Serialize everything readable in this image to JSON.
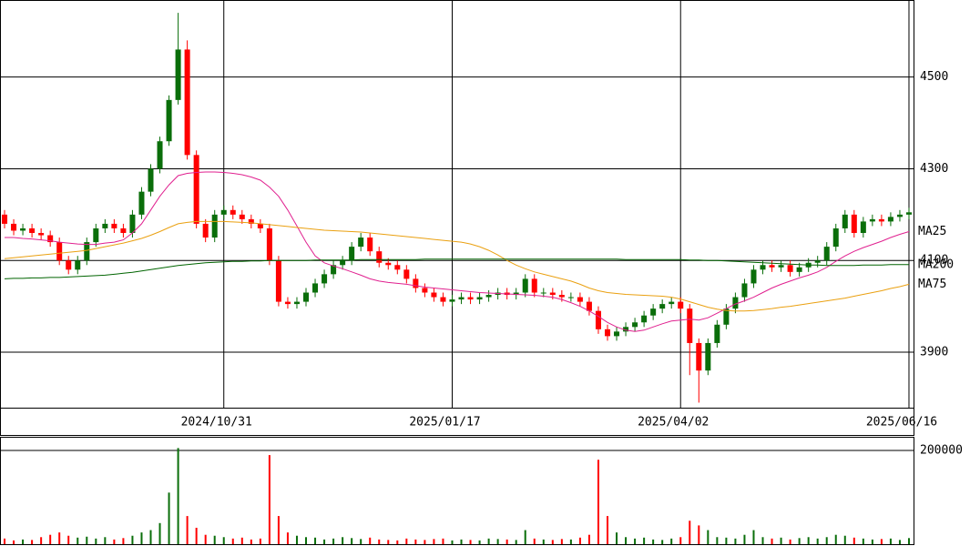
{
  "chart_data": [
    {
      "type": "candlestick",
      "categories": [
        null,
        null,
        null,
        null,
        null,
        null,
        null,
        null,
        null,
        null,
        null,
        null,
        null,
        null,
        null,
        null,
        null,
        null,
        null,
        null,
        null,
        null,
        null,
        null,
        "2024/10/31",
        null,
        null,
        null,
        null,
        null,
        null,
        null,
        null,
        null,
        null,
        null,
        null,
        null,
        null,
        null,
        null,
        null,
        null,
        null,
        null,
        null,
        null,
        null,
        null,
        "2025/01/17",
        null,
        null,
        null,
        null,
        null,
        null,
        null,
        null,
        null,
        null,
        null,
        null,
        null,
        null,
        null,
        null,
        null,
        null,
        null,
        null,
        null,
        null,
        null,
        null,
        "2025/04/02",
        null,
        null,
        null,
        null,
        null,
        null,
        null,
        null,
        null,
        null,
        null,
        null,
        null,
        null,
        null,
        null,
        null,
        null,
        null,
        null,
        null,
        null,
        null,
        null,
        "2025/06/16"
      ],
      "open": [
        4200,
        4180,
        4165,
        4170,
        4160,
        4155,
        4140,
        4100,
        4080,
        4100,
        4140,
        4170,
        4180,
        4170,
        4160,
        4200,
        4250,
        4300,
        4360,
        4450,
        4560,
        4330,
        4180,
        4150,
        4200,
        4210,
        4200,
        4190,
        4180,
        4170,
        4100,
        4010,
        4005,
        4010,
        4030,
        4050,
        4070,
        4090,
        4100,
        4130,
        4150,
        4120,
        4095,
        4090,
        4080,
        4060,
        4040,
        4030,
        4020,
        4010,
        4015,
        4020,
        4015,
        4020,
        4025,
        4030,
        4025,
        4030,
        4060,
        4030,
        4030,
        4025,
        4020,
        4020,
        4010,
        3990,
        3950,
        3935,
        3945,
        3955,
        3965,
        3980,
        3995,
        4005,
        4010,
        3995,
        3920,
        3860,
        3920,
        3960,
        3995,
        4020,
        4050,
        4080,
        4090,
        4085,
        4090,
        4075,
        4085,
        4095,
        4100,
        4130,
        4170,
        4200,
        4160,
        4185,
        4190,
        4185,
        4195,
        4200
      ],
      "high": [
        4210,
        4190,
        4180,
        4180,
        4170,
        4165,
        4150,
        4110,
        4110,
        4150,
        4180,
        4190,
        4190,
        4180,
        4210,
        4260,
        4310,
        4370,
        4460,
        4640,
        4580,
        4340,
        4190,
        4210,
        4220,
        4220,
        4210,
        4200,
        4190,
        4180,
        4110,
        4020,
        4020,
        4040,
        4060,
        4080,
        4100,
        4110,
        4140,
        4160,
        4160,
        4130,
        4105,
        4100,
        4090,
        4070,
        4050,
        4040,
        4030,
        4025,
        4030,
        4030,
        4030,
        4035,
        4040,
        4040,
        4040,
        4070,
        4070,
        4040,
        4040,
        4035,
        4030,
        4030,
        4020,
        4000,
        3960,
        3955,
        3965,
        3975,
        3990,
        4005,
        4015,
        4020,
        4020,
        4005,
        3930,
        3930,
        3970,
        4005,
        4030,
        4060,
        4090,
        4100,
        4100,
        4100,
        4100,
        4095,
        4105,
        4110,
        4140,
        4180,
        4210,
        4210,
        4195,
        4200,
        4200,
        4205,
        4210,
        4215
      ],
      "low": [
        4170,
        4155,
        4155,
        4150,
        4145,
        4130,
        4090,
        4070,
        4070,
        4090,
        4130,
        4160,
        4160,
        4150,
        4150,
        4190,
        4240,
        4290,
        4350,
        4440,
        4320,
        4170,
        4140,
        4140,
        4190,
        4190,
        4180,
        4170,
        4160,
        4090,
        4000,
        3995,
        3995,
        4000,
        4020,
        4040,
        4060,
        4080,
        4090,
        4120,
        4110,
        4085,
        4080,
        4070,
        4050,
        4030,
        4020,
        4010,
        4000,
        4000,
        4005,
        4005,
        4005,
        4010,
        4015,
        4015,
        4015,
        4020,
        4020,
        4020,
        4015,
        4010,
        4010,
        4000,
        3980,
        3940,
        3925,
        3925,
        3935,
        3945,
        3955,
        3970,
        3985,
        3995,
        3985,
        3850,
        3790,
        3850,
        3910,
        3950,
        3985,
        4010,
        4040,
        4070,
        4075,
        4075,
        4065,
        4065,
        4075,
        4085,
        4090,
        4120,
        4160,
        4150,
        4150,
        4175,
        4175,
        4175,
        4185,
        4190
      ],
      "close": [
        4180,
        4165,
        4170,
        4160,
        4155,
        4140,
        4100,
        4080,
        4100,
        4140,
        4170,
        4180,
        4170,
        4160,
        4200,
        4250,
        4300,
        4360,
        4450,
        4560,
        4330,
        4180,
        4150,
        4200,
        4210,
        4200,
        4190,
        4180,
        4170,
        4100,
        4010,
        4005,
        4010,
        4030,
        4050,
        4070,
        4090,
        4100,
        4130,
        4150,
        4120,
        4095,
        4090,
        4080,
        4060,
        4040,
        4030,
        4020,
        4010,
        4015,
        4020,
        4015,
        4020,
        4025,
        4030,
        4025,
        4030,
        4060,
        4030,
        4030,
        4025,
        4020,
        4020,
        4010,
        3990,
        3950,
        3935,
        3945,
        3955,
        3965,
        3980,
        3995,
        4005,
        4010,
        3995,
        3920,
        3860,
        3920,
        3960,
        3995,
        4020,
        4050,
        4080,
        4090,
        4085,
        4090,
        4075,
        4085,
        4095,
        4100,
        4130,
        4170,
        4200,
        4160,
        4185,
        4190,
        4185,
        4195,
        4200,
        4205
      ],
      "up_color": "#0a6e0a",
      "down_color": "#ff0000",
      "series": [
        {
          "name": "MA25",
          "color": "#e0208f",
          "values": [
            4150,
            4150,
            4148,
            4147,
            4145,
            4143,
            4140,
            4138,
            4136,
            4135,
            4135,
            4138,
            4140,
            4145,
            4160,
            4180,
            4210,
            4240,
            4265,
            4285,
            4290,
            4292,
            4293,
            4293,
            4292,
            4290,
            4287,
            4282,
            4275,
            4260,
            4240,
            4210,
            4175,
            4140,
            4110,
            4095,
            4088,
            4082,
            4075,
            4068,
            4060,
            4055,
            4052,
            4050,
            4048,
            4045,
            4042,
            4040,
            4038,
            4036,
            4034,
            4032,
            4030,
            4029,
            4028,
            4027,
            4026,
            4025,
            4024,
            4022,
            4020,
            4015,
            4008,
            4000,
            3990,
            3978,
            3965,
            3955,
            3948,
            3945,
            3948,
            3955,
            3962,
            3968,
            3970,
            3972,
            3970,
            3975,
            3985,
            3995,
            4005,
            4012,
            4020,
            4030,
            4040,
            4048,
            4055,
            4062,
            4068,
            4075,
            4085,
            4098,
            4110,
            4120,
            4128,
            4135,
            4142,
            4150,
            4157,
            4163
          ]
        },
        {
          "name": "MA75",
          "color": "#eaa010",
          "values": [
            4104,
            4106,
            4108,
            4110,
            4112,
            4114,
            4116,
            4118,
            4120,
            4122,
            4126,
            4130,
            4134,
            4138,
            4143,
            4148,
            4155,
            4163,
            4172,
            4180,
            4183,
            4185,
            4185,
            4185,
            4185,
            4184,
            4183,
            4182,
            4180,
            4178,
            4176,
            4174,
            4172,
            4170,
            4168,
            4166,
            4165,
            4164,
            4163,
            4162,
            4160,
            4158,
            4156,
            4154,
            4152,
            4150,
            4148,
            4146,
            4144,
            4142,
            4140,
            4136,
            4130,
            4122,
            4112,
            4100,
            4090,
            4082,
            4075,
            4070,
            4065,
            4060,
            4055,
            4048,
            4040,
            4034,
            4030,
            4028,
            4026,
            4025,
            4024,
            4023,
            4022,
            4020,
            4016,
            4010,
            4004,
            3998,
            3994,
            3991,
            3990,
            3990,
            3991,
            3993,
            3995,
            3998,
            4000,
            4003,
            4006,
            4009,
            4012,
            4015,
            4018,
            4022,
            4026,
            4030,
            4034,
            4039,
            4043,
            4048
          ]
        },
        {
          "name": "MA200",
          "color": "#006400",
          "values": [
            4060,
            4061,
            4061,
            4062,
            4062,
            4063,
            4063,
            4064,
            4065,
            4066,
            4067,
            4068,
            4070,
            4072,
            4074,
            4077,
            4080,
            4083,
            4086,
            4089,
            4091,
            4093,
            4095,
            4096,
            4097,
            4098,
            4098,
            4099,
            4099,
            4100,
            4100,
            4100,
            4100,
            4100,
            4101,
            4101,
            4101,
            4101,
            4101,
            4102,
            4102,
            4102,
            4102,
            4102,
            4102,
            4102,
            4103,
            4103,
            4103,
            4103,
            4103,
            4103,
            4103,
            4103,
            4103,
            4103,
            4103,
            4103,
            4103,
            4103,
            4103,
            4103,
            4103,
            4103,
            4103,
            4103,
            4103,
            4103,
            4102,
            4102,
            4102,
            4102,
            4102,
            4102,
            4102,
            4101,
            4101,
            4100,
            4100,
            4099,
            4098,
            4097,
            4096,
            4095,
            4094,
            4093,
            4092,
            4091,
            4090,
            4090,
            4089,
            4089,
            4089,
            4089,
            4090,
            4090,
            4090,
            4091,
            4091,
            4091
          ]
        }
      ],
      "ylim": [
        3779,
        4668
      ],
      "yticks": [
        3900,
        4100,
        4300,
        4500
      ],
      "grid": true
    },
    {
      "type": "bar",
      "values": [
        12000,
        8000,
        10000,
        9000,
        15000,
        20000,
        25000,
        18000,
        14000,
        16000,
        12000,
        15000,
        10000,
        13000,
        18000,
        25000,
        30000,
        45000,
        110000,
        205000,
        60000,
        35000,
        20000,
        18000,
        15000,
        12000,
        14000,
        10000,
        12000,
        190000,
        60000,
        25000,
        18000,
        15000,
        14000,
        10000,
        12000,
        15000,
        13000,
        11000,
        14000,
        10000,
        9000,
        8000,
        12000,
        10000,
        9000,
        11000,
        12000,
        8000,
        10000,
        9000,
        8000,
        12000,
        11000,
        10000,
        9000,
        30000,
        12000,
        10000,
        9000,
        11000,
        10000,
        14000,
        20000,
        180000,
        60000,
        25000,
        15000,
        12000,
        14000,
        10000,
        9000,
        12000,
        15000,
        50000,
        40000,
        30000,
        15000,
        14000,
        12000,
        20000,
        30000,
        15000,
        12000,
        14000,
        10000,
        13000,
        15000,
        12000,
        15000,
        20000,
        18000,
        14000,
        12000,
        10000,
        11000,
        12000,
        9000,
        13000
      ],
      "ylim": [
        0,
        229000
      ],
      "yticks": [
        200000
      ],
      "grid": true
    }
  ]
}
